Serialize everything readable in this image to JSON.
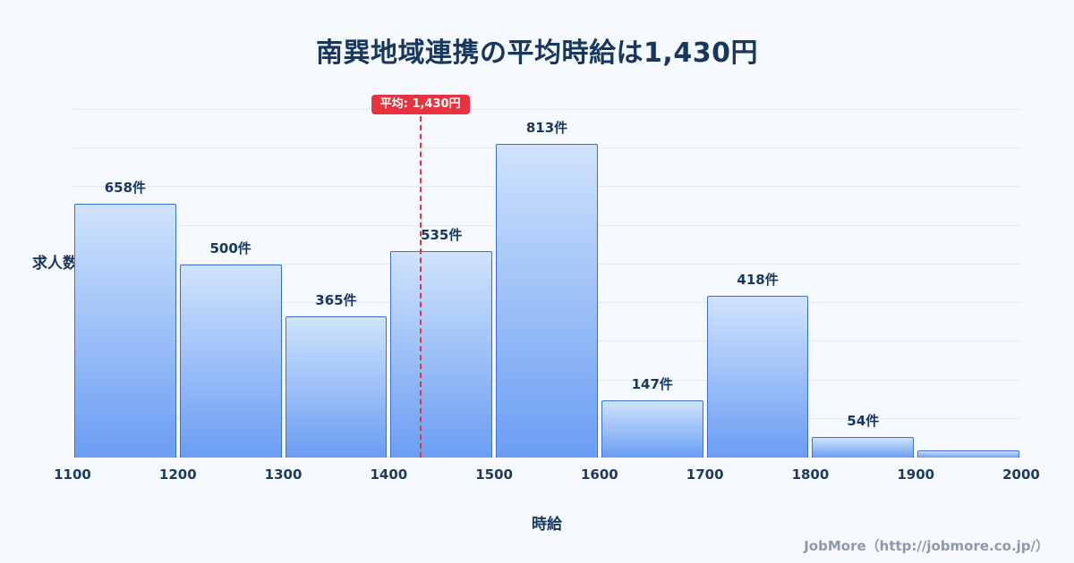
{
  "page": {
    "footer": "JobMore（http://jobmore.co.jp/）"
  },
  "chart_data": {
    "type": "bar",
    "title": "南巽地域連携の平均時給は1,430円",
    "xlabel": "時給",
    "ylabel": "求人数",
    "bin_width": 100,
    "x_ticks": [
      1100,
      1200,
      1300,
      1400,
      1500,
      1600,
      1700,
      1800,
      1900,
      2000
    ],
    "categories": [
      "1100-1200",
      "1200-1300",
      "1300-1400",
      "1400-1500",
      "1500-1600",
      "1600-1700",
      "1700-1800",
      "1800-1900",
      "1900-2000"
    ],
    "values": [
      658,
      500,
      365,
      535,
      813,
      147,
      418,
      54,
      18
    ],
    "labels": [
      "658件",
      "500件",
      "365件",
      "535件",
      "813件",
      "147件",
      "418件",
      "54件",
      ""
    ],
    "average": {
      "value": 1430,
      "label": "平均: 1,430円"
    },
    "xlim": [
      1100,
      2000
    ],
    "ylim": [
      0,
      930
    ],
    "grid": "horizontal",
    "legend": "none",
    "colors": {
      "background": "#f6f9fd",
      "bar_fill_top": "#cfe3fc",
      "bar_fill_bottom": "#6b9df3",
      "bar_border": "#3a6fd8",
      "average_line": "#e8323f",
      "badge_bg": "#e8323f",
      "badge_text": "#ffffff",
      "title_text": "#17375e"
    }
  }
}
